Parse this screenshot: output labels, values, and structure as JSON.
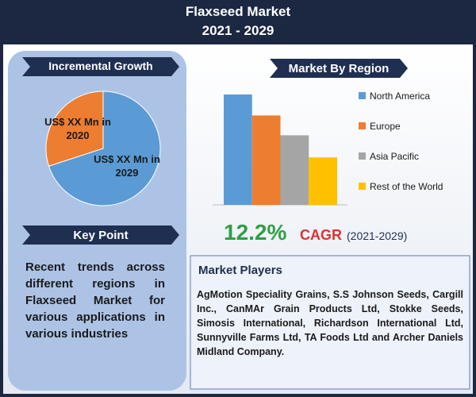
{
  "header": {
    "title": "Flaxseed Market",
    "subtitle": "2021 - 2029"
  },
  "chart_data": [
    {
      "type": "pie",
      "title": "Incremental Growth",
      "categories": [
        "US$ XX Mn in 2020",
        "US$ XX Mn in 2029"
      ],
      "values": [
        30,
        70
      ],
      "colors": [
        "#ed7d31",
        "#5b9bd5"
      ]
    },
    {
      "type": "bar",
      "title": "Market By Region",
      "categories": [
        "North America",
        "Europe",
        "Asia Pacific",
        "Rest of the World"
      ],
      "values": [
        100,
        81,
        63,
        43
      ],
      "colors": [
        "#5b9bd5",
        "#ed7d31",
        "#a5a5a5",
        "#ffc000"
      ]
    }
  ],
  "cagr": {
    "value": "12.2%",
    "label": "CAGR",
    "period": "(2021-2029)"
  },
  "key_point": {
    "title": "Key Point",
    "text": "Recent trends across different regions in Flaxseed Market for various applications in various industries"
  },
  "market_players": {
    "title": "Market Players",
    "text": "AgMotion Speciality Grains, S.S Johnson Seeds, Cargill Inc., CanMAr Grain Products Ltd, Stokke Seeds, Simosis International, Richardson International Ltd, Sunnyville Farms Ltd, TA Foods Ltd and Archer Daniels Midland Company."
  }
}
